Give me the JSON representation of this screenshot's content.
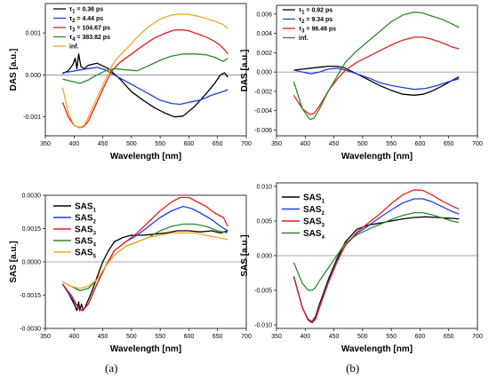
{
  "captions": [
    "(a)",
    "(b)"
  ],
  "chart_data": [
    {
      "type": "line",
      "xlabel": "Wavelength [nm]",
      "ylabel": "DAS [a.u.]",
      "xlim": [
        350,
        700
      ],
      "ylim": [
        -0.00145,
        0.0017
      ],
      "xticks": [
        350,
        400,
        450,
        500,
        550,
        600,
        650,
        700
      ],
      "yticks": [
        -0.001,
        0.0,
        0.001
      ],
      "ytick_labels": [
        "-0.001",
        "0.000",
        "0.001"
      ],
      "legend_style": "small",
      "series": [
        {
          "symbol": "τ",
          "sub": "1",
          "value": " = 0.36 ps",
          "color": "#000000",
          "x": [
            380,
            390,
            398,
            402,
            405,
            408,
            412,
            418,
            425,
            440,
            460,
            480,
            500,
            520,
            540,
            560,
            575,
            590,
            610,
            630,
            645,
            655,
            662,
            668
          ],
          "y": [
            3e-05,
            0.0001,
            0.00025,
            0.0004,
            0.00015,
            0.0005,
            0.0002,
            0.00015,
            0.00023,
            0.00028,
            0.00015,
            -0.0001,
            -0.0004,
            -0.0006,
            -0.00078,
            -0.00092,
            -0.001,
            -0.00098,
            -0.00075,
            -0.00045,
            -0.0002,
            0.0,
            5e-05,
            -5e-05
          ]
        },
        {
          "symbol": "τ",
          "sub": "2",
          "value": " = 4.44 ps",
          "color": "#1f3fe0",
          "x": [
            380,
            395,
            410,
            425,
            440,
            455,
            470,
            490,
            510,
            530,
            550,
            570,
            585,
            600,
            620,
            640,
            655,
            668
          ],
          "y": [
            5e-05,
            8e-05,
            0.00012,
            0.00015,
            0.00018,
            0.00012,
            0.0,
            -0.00015,
            -0.0003,
            -0.00045,
            -0.0006,
            -0.00068,
            -0.0007,
            -0.00065,
            -0.0006,
            -0.00048,
            -0.00042,
            -0.00035
          ]
        },
        {
          "symbol": "τ",
          "sub": "3",
          "value": " = 104.67 ps",
          "color": "#e0201c",
          "x": [
            380,
            390,
            400,
            410,
            418,
            425,
            435,
            445,
            455,
            465,
            480,
            500,
            520,
            540,
            560,
            575,
            590,
            600,
            615,
            630,
            645,
            655,
            662,
            668
          ],
          "y": [
            -0.00065,
            -0.001,
            -0.0012,
            -0.00126,
            -0.00122,
            -0.0011,
            -0.0008,
            -0.0005,
            -0.0002,
            8e-05,
            0.0003,
            0.0005,
            0.0007,
            0.00088,
            0.001,
            0.00107,
            0.00107,
            0.00105,
            0.00098,
            0.0009,
            0.0008,
            0.0007,
            0.0006,
            0.0005
          ]
        },
        {
          "symbol": "τ",
          "sub": "4",
          "value": " = 383.82 ps",
          "color": "#2a8a2a",
          "x": [
            380,
            395,
            410,
            425,
            440,
            455,
            470,
            490,
            510,
            530,
            550,
            570,
            590,
            610,
            630,
            645,
            660,
            668
          ],
          "y": [
            -0.0001,
            -0.00015,
            -0.0002,
            -0.00012,
            0.0,
            0.0001,
            0.00015,
            0.00012,
            0.0001,
            0.00022,
            0.00035,
            0.00045,
            0.0005,
            0.0005,
            0.00048,
            0.00042,
            0.00032,
            0.0004
          ]
        },
        {
          "symbol": "",
          "sub": "",
          "value": "inf.",
          "color": "#f5a623",
          "x": [
            380,
            390,
            400,
            410,
            418,
            425,
            435,
            445,
            455,
            465,
            475,
            490,
            510,
            530,
            550,
            570,
            585,
            600,
            615,
            630,
            645,
            660,
            668
          ],
          "y": [
            -0.0003,
            -0.0009,
            -0.0012,
            -0.00125,
            -0.0012,
            -0.001,
            -0.0007,
            -0.0004,
            -0.0001,
            0.0002,
            0.0004,
            0.0006,
            0.0009,
            0.00115,
            0.00133,
            0.00143,
            0.00145,
            0.00144,
            0.0014,
            0.00135,
            0.00128,
            0.0012,
            0.0011
          ]
        }
      ]
    },
    {
      "type": "line",
      "xlabel": "Wavelength [nm]",
      "ylabel": "DAS [a.u.]",
      "xlim": [
        350,
        700
      ],
      "ylim": [
        -0.0066,
        0.0069
      ],
      "xticks": [
        350,
        400,
        450,
        500,
        550,
        600,
        650,
        700
      ],
      "yticks": [
        -0.006,
        -0.004,
        -0.002,
        0.0,
        0.002,
        0.004,
        0.006
      ],
      "ytick_labels": [
        "-0.006",
        "-0.004",
        "-0.002",
        "0.000",
        "0.002",
        "0.004",
        "0.006"
      ],
      "legend_style": "small",
      "series": [
        {
          "symbol": "τ",
          "sub": "1",
          "value": " = 0.92 ps",
          "color": "#000000",
          "x": [
            380,
            395,
            410,
            425,
            440,
            455,
            470,
            490,
            510,
            530,
            550,
            570,
            590,
            605,
            620,
            640,
            655,
            668
          ],
          "y": [
            0.0002,
            0.0003,
            0.0004,
            0.0005,
            0.0006,
            0.0006,
            0.0004,
            -0.0002,
            -0.0008,
            -0.0014,
            -0.0019,
            -0.0023,
            -0.0024,
            -0.0023,
            -0.002,
            -0.0014,
            -0.0009,
            -0.0005
          ]
        },
        {
          "symbol": "τ",
          "sub": "2",
          "value": " = 9.34 ps",
          "color": "#1f3fe0",
          "x": [
            380,
            395,
            410,
            425,
            440,
            455,
            470,
            490,
            510,
            530,
            550,
            570,
            590,
            610,
            630,
            650,
            668
          ],
          "y": [
            0.0002,
            0.0,
            -0.0002,
            0.0,
            0.0003,
            0.0004,
            0.0002,
            -0.0002,
            -0.0006,
            -0.0011,
            -0.0014,
            -0.0016,
            -0.0018,
            -0.0017,
            -0.0014,
            -0.001,
            -0.0007
          ]
        },
        {
          "symbol": "τ",
          "sub": "3",
          "value": " = 96.46 ps",
          "color": "#e0201c",
          "x": [
            380,
            395,
            408,
            415,
            425,
            440,
            455,
            470,
            490,
            510,
            530,
            550,
            570,
            590,
            605,
            620,
            640,
            655,
            668
          ],
          "y": [
            -0.0024,
            -0.0038,
            -0.0044,
            -0.0043,
            -0.0035,
            -0.002,
            -0.0008,
            0.0002,
            0.001,
            0.0016,
            0.0022,
            0.0028,
            0.0033,
            0.0036,
            0.0036,
            0.0034,
            0.003,
            0.0026,
            0.0024
          ]
        },
        {
          "symbol": "",
          "sub": "",
          "value": "inf.",
          "color": "#2a8a2a",
          "x": [
            380,
            395,
            408,
            415,
            425,
            440,
            455,
            470,
            490,
            510,
            530,
            550,
            570,
            590,
            605,
            620,
            640,
            655,
            668
          ],
          "y": [
            -0.001,
            -0.0038,
            -0.0049,
            -0.0048,
            -0.0038,
            -0.002,
            -0.0005,
            0.001,
            0.0022,
            0.0032,
            0.0042,
            0.0052,
            0.0059,
            0.0062,
            0.0061,
            0.0058,
            0.0054,
            0.005,
            0.0046
          ]
        }
      ]
    },
    {
      "type": "line",
      "xlabel": "Wavelength [nm]",
      "ylabel": "SAS [a.u.]",
      "xlim": [
        350,
        700
      ],
      "ylim": [
        -0.003,
        0.003
      ],
      "xticks": [
        350,
        400,
        450,
        500,
        550,
        600,
        650,
        700
      ],
      "yticks": [
        -0.003,
        -0.0015,
        0.0,
        0.0015,
        0.003
      ],
      "ytick_labels": [
        "-0.0030",
        "-0.0015",
        "0.0000",
        "0.0015",
        "0.0030"
      ],
      "legend_style": "big",
      "series": [
        {
          "symbol": "SAS",
          "sub": "1",
          "value": "",
          "color": "#000000",
          "x": [
            380,
            390,
            400,
            405,
            408,
            410,
            413,
            416,
            420,
            430,
            440,
            450,
            460,
            470,
            485,
            500,
            520,
            540,
            560,
            580,
            600,
            620,
            640,
            655,
            668
          ],
          "y": [
            -0.001,
            -0.0014,
            -0.0019,
            -0.0022,
            -0.0018,
            -0.0022,
            -0.0019,
            -0.0022,
            -0.002,
            -0.0014,
            -0.0007,
            0.0,
            0.0005,
            0.0009,
            0.0011,
            0.0012,
            0.0012,
            0.00125,
            0.0013,
            0.0014,
            0.0014,
            0.00135,
            0.0014,
            0.0013,
            0.0014
          ]
        },
        {
          "symbol": "SAS",
          "sub": "2",
          "value": "",
          "color": "#1f3fe0",
          "x": [
            380,
            395,
            408,
            415,
            425,
            440,
            455,
            470,
            490,
            510,
            530,
            550,
            570,
            590,
            605,
            620,
            640,
            655,
            668
          ],
          "y": [
            -0.001,
            -0.0016,
            -0.0021,
            -0.0022,
            -0.0019,
            -0.001,
            -0.0002,
            0.0005,
            0.0009,
            0.0012,
            0.0016,
            0.002,
            0.0023,
            0.0025,
            0.0024,
            0.0022,
            0.0019,
            0.0016,
            0.0014
          ]
        },
        {
          "symbol": "SAS",
          "sub": "3",
          "value": "",
          "color": "#e0201c",
          "x": [
            380,
            395,
            408,
            415,
            425,
            440,
            455,
            470,
            490,
            510,
            530,
            550,
            570,
            585,
            600,
            615,
            630,
            645,
            660,
            668
          ],
          "y": [
            -0.001,
            -0.0015,
            -0.0021,
            -0.0022,
            -0.0019,
            -0.001,
            -0.0002,
            0.0005,
            0.0009,
            0.0013,
            0.0018,
            0.0023,
            0.0027,
            0.0029,
            0.0029,
            0.0027,
            0.0025,
            0.0022,
            0.002,
            0.0016
          ]
        },
        {
          "symbol": "SAS",
          "sub": "4",
          "value": "",
          "color": "#2a8a2a",
          "x": [
            380,
            395,
            410,
            425,
            440,
            455,
            470,
            490,
            510,
            530,
            550,
            570,
            590,
            610,
            630,
            650,
            668
          ],
          "y": [
            -0.0009,
            -0.0011,
            -0.0013,
            -0.0012,
            -0.0008,
            -0.0002,
            0.0003,
            0.0007,
            0.0009,
            0.0011,
            0.0014,
            0.0016,
            0.0017,
            0.0017,
            0.0016,
            0.0014,
            0.0013
          ]
        },
        {
          "symbol": "SAS",
          "sub": "5",
          "value": "",
          "color": "#f5a623",
          "x": [
            380,
            395,
            410,
            425,
            440,
            455,
            470,
            490,
            510,
            530,
            550,
            570,
            590,
            610,
            630,
            650,
            668
          ],
          "y": [
            -0.0009,
            -0.0011,
            -0.0012,
            -0.0011,
            -0.0008,
            -0.0002,
            0.0003,
            0.0007,
            0.0009,
            0.0011,
            0.0012,
            0.0013,
            0.0013,
            0.0013,
            0.0012,
            0.0011,
            0.001
          ]
        }
      ]
    },
    {
      "type": "line",
      "xlabel": "Wavelength [nm]",
      "ylabel": "SAS [a.u.]",
      "xlim": [
        350,
        700
      ],
      "ylim": [
        -0.0105,
        0.0105
      ],
      "xticks": [
        350,
        400,
        450,
        500,
        550,
        600,
        650,
        700
      ],
      "yticks": [
        -0.01,
        -0.005,
        0.0,
        0.005,
        0.01
      ],
      "ytick_labels": [
        "-0.010",
        "-0.005",
        "0.000",
        "0.005",
        "0.010"
      ],
      "legend_style": "big",
      "series": [
        {
          "symbol": "SAS",
          "sub": "1",
          "value": "",
          "color": "#000000",
          "x": [
            380,
            395,
            405,
            412,
            418,
            425,
            440,
            455,
            470,
            490,
            510,
            530,
            550,
            570,
            590,
            610,
            630,
            650,
            668
          ],
          "y": [
            -0.003,
            -0.0075,
            -0.0092,
            -0.0095,
            -0.0088,
            -0.007,
            -0.0035,
            -0.0005,
            0.002,
            0.0038,
            0.0044,
            0.0047,
            0.005,
            0.0053,
            0.0055,
            0.0056,
            0.0055,
            0.0054,
            0.0053
          ]
        },
        {
          "symbol": "SAS",
          "sub": "2",
          "value": "",
          "color": "#1f3fe0",
          "x": [
            380,
            395,
            405,
            412,
            418,
            425,
            440,
            455,
            470,
            490,
            510,
            530,
            550,
            570,
            590,
            605,
            620,
            640,
            655,
            668
          ],
          "y": [
            -0.003,
            -0.0075,
            -0.0093,
            -0.0095,
            -0.009,
            -0.0073,
            -0.0038,
            -0.0008,
            0.0015,
            0.0032,
            0.0043,
            0.0055,
            0.0066,
            0.0076,
            0.0082,
            0.0082,
            0.0078,
            0.007,
            0.0064,
            0.006
          ]
        },
        {
          "symbol": "SAS",
          "sub": "3",
          "value": "",
          "color": "#e0201c",
          "x": [
            380,
            395,
            405,
            412,
            418,
            425,
            440,
            455,
            470,
            490,
            510,
            530,
            550,
            570,
            590,
            605,
            620,
            640,
            655,
            668
          ],
          "y": [
            -0.003,
            -0.0075,
            -0.0093,
            -0.0097,
            -0.0092,
            -0.0075,
            -0.004,
            -0.001,
            0.0015,
            0.0034,
            0.0047,
            0.006,
            0.0075,
            0.0088,
            0.0095,
            0.0094,
            0.0088,
            0.0078,
            0.0072,
            0.0067
          ]
        },
        {
          "symbol": "SAS",
          "sub": "4",
          "value": "",
          "color": "#2a8a2a",
          "x": [
            380,
            395,
            405,
            412,
            418,
            425,
            440,
            455,
            470,
            490,
            510,
            530,
            550,
            570,
            590,
            605,
            620,
            640,
            655,
            668
          ],
          "y": [
            -0.001,
            -0.004,
            -0.005,
            -0.005,
            -0.0046,
            -0.0036,
            -0.0018,
            0.0,
            0.0018,
            0.003,
            0.0038,
            0.0045,
            0.0052,
            0.0058,
            0.0062,
            0.0062,
            0.0059,
            0.0054,
            0.005,
            0.0048
          ]
        }
      ]
    }
  ]
}
